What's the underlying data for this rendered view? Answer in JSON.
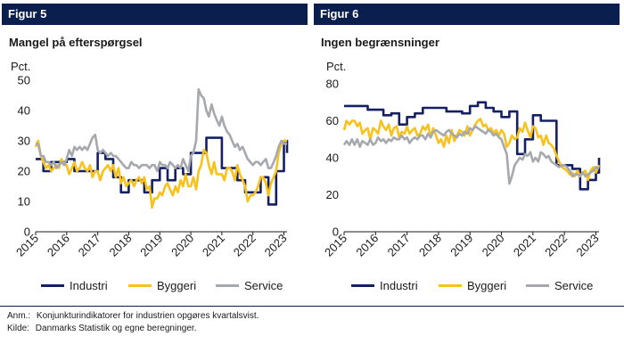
{
  "colors": {
    "industri": "#142063",
    "byggeri": "#f7c21e",
    "service": "#a5a8ad",
    "header_bg": "#0b1f4f"
  },
  "left": {
    "figure_label": "Figur 5",
    "title": "Mangel på efterspørgsel"
  },
  "right": {
    "figure_label": "Figur 6",
    "title": "Ingen begrænsninger"
  },
  "legend": {
    "industri": "Industri",
    "byggeri": "Byggeri",
    "service": "Service"
  },
  "notes": {
    "anm_label": "Anm.:",
    "anm_text": "Konjunkturindikatorer for industrien opgøres kvartalsvist.",
    "kilde_label": "Kilde:",
    "kilde_text": "Danmarks Statistik og egne beregninger."
  },
  "chart_data": [
    {
      "type": "line",
      "title": "Mangel på efterspørgsel",
      "ylabel": "Pct.",
      "ylim": [
        0,
        50
      ],
      "yticks": [
        0,
        10,
        20,
        30,
        40,
        50
      ],
      "xlim": [
        2015,
        2023.1
      ],
      "xticks": [
        "2015",
        "2016",
        "2017",
        "2018",
        "2019",
        "2020",
        "2021",
        "2022",
        "2023"
      ],
      "grid": false,
      "legend_position": "bottom",
      "series": [
        {
          "name": "Industri",
          "color": "#142063",
          "step": true,
          "x": [
            2015.0,
            2015.25,
            2015.5,
            2015.75,
            2016.0,
            2016.25,
            2016.5,
            2016.75,
            2017.0,
            2017.25,
            2017.5,
            2017.75,
            2018.0,
            2018.25,
            2018.5,
            2018.75,
            2019.0,
            2019.25,
            2019.5,
            2019.75,
            2020.0,
            2020.25,
            2020.5,
            2020.75,
            2021.0,
            2021.25,
            2021.5,
            2021.75,
            2022.0,
            2022.25,
            2022.5,
            2022.75,
            2023.0,
            2023.1
          ],
          "y": [
            24,
            20,
            23,
            23,
            24,
            20,
            20,
            20,
            26,
            24,
            18,
            13,
            17,
            17,
            13,
            17,
            21,
            17,
            21,
            19,
            26,
            26,
            31,
            31,
            21,
            21,
            17,
            13,
            13,
            18,
            9,
            20,
            30,
            26
          ]
        },
        {
          "name": "Byggeri",
          "color": "#f7c21e",
          "x": [
            2015.0,
            2015.08,
            2015.17,
            2015.25,
            2015.33,
            2015.42,
            2015.5,
            2015.58,
            2015.67,
            2015.75,
            2015.83,
            2015.92,
            2016.0,
            2016.08,
            2016.17,
            2016.25,
            2016.33,
            2016.42,
            2016.5,
            2016.58,
            2016.67,
            2016.75,
            2016.83,
            2016.92,
            2017.0,
            2017.08,
            2017.17,
            2017.25,
            2017.33,
            2017.42,
            2017.5,
            2017.58,
            2017.67,
            2017.75,
            2017.83,
            2017.92,
            2018.0,
            2018.08,
            2018.17,
            2018.25,
            2018.33,
            2018.42,
            2018.5,
            2018.58,
            2018.67,
            2018.75,
            2018.83,
            2018.92,
            2019.0,
            2019.08,
            2019.17,
            2019.25,
            2019.33,
            2019.42,
            2019.5,
            2019.58,
            2019.67,
            2019.75,
            2019.83,
            2019.92,
            2020.0,
            2020.08,
            2020.17,
            2020.25,
            2020.33,
            2020.42,
            2020.5,
            2020.58,
            2020.67,
            2020.75,
            2020.83,
            2020.92,
            2021.0,
            2021.08,
            2021.17,
            2021.25,
            2021.33,
            2021.42,
            2021.5,
            2021.58,
            2021.67,
            2021.75,
            2021.83,
            2021.92,
            2022.0,
            2022.08,
            2022.17,
            2022.25,
            2022.33,
            2022.42,
            2022.5,
            2022.58,
            2022.67,
            2022.75,
            2022.83,
            2022.92,
            2023.0,
            2023.1
          ],
          "y": [
            28,
            30,
            25,
            23,
            21,
            22,
            20,
            21,
            22,
            21,
            24,
            22,
            22,
            19,
            21,
            23,
            20,
            21,
            23,
            21,
            20,
            22,
            18,
            20,
            20,
            17,
            20,
            21,
            22,
            20,
            22,
            18,
            21,
            16,
            18,
            15,
            16,
            17,
            15,
            17,
            18,
            16,
            18,
            14,
            15,
            8,
            11,
            11,
            13,
            12,
            15,
            16,
            14,
            12,
            15,
            13,
            17,
            15,
            19,
            15,
            15,
            18,
            14,
            20,
            22,
            27,
            26,
            22,
            19,
            23,
            19,
            19,
            19,
            17,
            21,
            21,
            20,
            17,
            22,
            19,
            17,
            15,
            10,
            12,
            12,
            13,
            15,
            18,
            18,
            16,
            12,
            16,
            18,
            20,
            26,
            29,
            30,
            30
          ]
        },
        {
          "name": "Service",
          "color": "#a5a8ad",
          "x": [
            2015.0,
            2015.08,
            2015.17,
            2015.25,
            2015.33,
            2015.42,
            2015.5,
            2015.58,
            2015.67,
            2015.75,
            2015.83,
            2015.92,
            2016.0,
            2016.08,
            2016.17,
            2016.25,
            2016.33,
            2016.42,
            2016.5,
            2016.58,
            2016.67,
            2016.75,
            2016.83,
            2016.92,
            2017.0,
            2017.08,
            2017.17,
            2017.25,
            2017.33,
            2017.42,
            2017.5,
            2017.58,
            2017.67,
            2017.75,
            2017.83,
            2017.92,
            2018.0,
            2018.08,
            2018.17,
            2018.25,
            2018.33,
            2018.42,
            2018.5,
            2018.58,
            2018.67,
            2018.75,
            2018.83,
            2018.92,
            2019.0,
            2019.08,
            2019.17,
            2019.25,
            2019.33,
            2019.42,
            2019.5,
            2019.58,
            2019.67,
            2019.75,
            2019.83,
            2019.92,
            2020.0,
            2020.08,
            2020.17,
            2020.25,
            2020.33,
            2020.42,
            2020.5,
            2020.58,
            2020.67,
            2020.75,
            2020.83,
            2020.92,
            2021.0,
            2021.08,
            2021.17,
            2021.25,
            2021.33,
            2021.42,
            2021.5,
            2021.58,
            2021.67,
            2021.75,
            2021.83,
            2021.92,
            2022.0,
            2022.08,
            2022.17,
            2022.25,
            2022.33,
            2022.42,
            2022.5,
            2022.58,
            2022.67,
            2022.75,
            2022.83,
            2022.92,
            2023.0,
            2023.1
          ],
          "y": [
            29,
            29,
            25,
            25,
            23,
            23,
            22,
            23,
            21,
            22,
            23,
            22,
            24,
            27,
            25,
            28,
            27,
            28,
            27,
            28,
            27,
            29,
            31,
            32,
            27,
            26,
            27,
            26,
            25,
            26,
            25,
            25,
            24,
            23,
            22,
            21,
            21,
            23,
            22,
            22,
            21,
            22,
            22,
            22,
            21,
            22,
            22,
            20,
            23,
            22,
            22,
            21,
            23,
            22,
            21,
            22,
            21,
            24,
            22,
            20,
            25,
            26,
            30,
            47,
            45,
            44,
            40,
            38,
            42,
            39,
            37,
            35,
            38,
            35,
            33,
            32,
            30,
            28,
            29,
            27,
            28,
            26,
            24,
            23,
            22,
            23,
            23,
            22,
            23,
            24,
            21,
            21,
            23,
            25,
            28,
            30,
            29,
            29
          ]
        }
      ]
    },
    {
      "type": "line",
      "title": "Ingen begrænsninger",
      "ylabel": "Pct.",
      "ylim": [
        0,
        80
      ],
      "yticks": [
        0,
        20,
        40,
        60,
        80
      ],
      "xlim": [
        2015,
        2023.1
      ],
      "xticks": [
        "2015",
        "2016",
        "2017",
        "2018",
        "2019",
        "2020",
        "2021",
        "2022",
        "2023"
      ],
      "grid": false,
      "legend_position": "bottom",
      "series": [
        {
          "name": "Industri",
          "color": "#142063",
          "step": true,
          "x": [
            2015.0,
            2015.25,
            2015.5,
            2015.75,
            2016.0,
            2016.25,
            2016.5,
            2016.75,
            2017.0,
            2017.25,
            2017.5,
            2017.75,
            2018.0,
            2018.25,
            2018.5,
            2018.75,
            2019.0,
            2019.25,
            2019.5,
            2019.75,
            2020.0,
            2020.25,
            2020.5,
            2020.75,
            2021.0,
            2021.25,
            2021.5,
            2021.75,
            2022.0,
            2022.25,
            2022.5,
            2022.75,
            2023.0,
            2023.1
          ],
          "y": [
            68,
            68,
            68,
            66,
            66,
            63,
            64,
            58,
            62,
            64,
            67,
            67,
            67,
            65,
            65,
            64,
            68,
            70,
            67,
            65,
            62,
            65,
            42,
            50,
            63,
            60,
            60,
            36,
            36,
            34,
            23,
            28,
            32,
            40
          ]
        },
        {
          "name": "Byggeri",
          "color": "#f7c21e",
          "x": [
            2015.0,
            2015.08,
            2015.17,
            2015.25,
            2015.33,
            2015.42,
            2015.5,
            2015.58,
            2015.67,
            2015.75,
            2015.83,
            2015.92,
            2016.0,
            2016.08,
            2016.17,
            2016.25,
            2016.33,
            2016.42,
            2016.5,
            2016.58,
            2016.67,
            2016.75,
            2016.83,
            2016.92,
            2017.0,
            2017.08,
            2017.17,
            2017.25,
            2017.33,
            2017.42,
            2017.5,
            2017.58,
            2017.67,
            2017.75,
            2017.83,
            2017.92,
            2018.0,
            2018.08,
            2018.17,
            2018.25,
            2018.33,
            2018.42,
            2018.5,
            2018.58,
            2018.67,
            2018.75,
            2018.83,
            2018.92,
            2019.0,
            2019.08,
            2019.17,
            2019.25,
            2019.33,
            2019.42,
            2019.5,
            2019.58,
            2019.67,
            2019.75,
            2019.83,
            2019.92,
            2020.0,
            2020.08,
            2020.17,
            2020.25,
            2020.33,
            2020.42,
            2020.5,
            2020.58,
            2020.67,
            2020.75,
            2020.83,
            2020.92,
            2021.0,
            2021.08,
            2021.17,
            2021.25,
            2021.33,
            2021.42,
            2021.5,
            2021.58,
            2021.67,
            2021.75,
            2021.83,
            2021.92,
            2022.0,
            2022.08,
            2022.17,
            2022.25,
            2022.33,
            2022.42,
            2022.5,
            2022.58,
            2022.67,
            2022.75,
            2022.83,
            2022.92,
            2023.0,
            2023.1
          ],
          "y": [
            55,
            60,
            58,
            60,
            60,
            57,
            59,
            53,
            55,
            56,
            50,
            56,
            55,
            53,
            60,
            57,
            55,
            58,
            52,
            56,
            57,
            51,
            54,
            53,
            57,
            53,
            55,
            56,
            52,
            53,
            57,
            55,
            58,
            51,
            56,
            52,
            48,
            50,
            46,
            52,
            48,
            55,
            49,
            52,
            55,
            54,
            52,
            57,
            52,
            55,
            58,
            60,
            61,
            57,
            58,
            55,
            56,
            53,
            55,
            52,
            55,
            53,
            46,
            48,
            52,
            50,
            51,
            56,
            54,
            59,
            55,
            51,
            57,
            56,
            51,
            52,
            47,
            52,
            48,
            47,
            45,
            41,
            38,
            35,
            34,
            33,
            31,
            32,
            30,
            33,
            30,
            32,
            33,
            28,
            33,
            35,
            32,
            36
          ]
        },
        {
          "name": "Service",
          "color": "#a5a8ad",
          "x": [
            2015.0,
            2015.08,
            2015.17,
            2015.25,
            2015.33,
            2015.42,
            2015.5,
            2015.58,
            2015.67,
            2015.75,
            2015.83,
            2015.92,
            2016.0,
            2016.08,
            2016.17,
            2016.25,
            2016.33,
            2016.42,
            2016.5,
            2016.58,
            2016.67,
            2016.75,
            2016.83,
            2016.92,
            2017.0,
            2017.08,
            2017.17,
            2017.25,
            2017.33,
            2017.42,
            2017.5,
            2017.58,
            2017.67,
            2017.75,
            2017.83,
            2017.92,
            2018.0,
            2018.08,
            2018.17,
            2018.25,
            2018.33,
            2018.42,
            2018.5,
            2018.58,
            2018.67,
            2018.75,
            2018.83,
            2018.92,
            2019.0,
            2019.08,
            2019.17,
            2019.25,
            2019.33,
            2019.42,
            2019.5,
            2019.58,
            2019.67,
            2019.75,
            2019.83,
            2019.92,
            2020.0,
            2020.08,
            2020.17,
            2020.25,
            2020.33,
            2020.42,
            2020.5,
            2020.58,
            2020.67,
            2020.75,
            2020.83,
            2020.92,
            2021.0,
            2021.08,
            2021.17,
            2021.25,
            2021.33,
            2021.42,
            2021.5,
            2021.58,
            2021.67,
            2021.75,
            2021.83,
            2021.92,
            2022.0,
            2022.08,
            2022.17,
            2022.25,
            2022.33,
            2022.42,
            2022.5,
            2022.58,
            2022.67,
            2022.75,
            2022.83,
            2022.92,
            2023.0,
            2023.1
          ],
          "y": [
            47,
            49,
            47,
            50,
            47,
            50,
            46,
            49,
            48,
            47,
            50,
            47,
            48,
            51,
            49,
            50,
            48,
            50,
            49,
            51,
            50,
            50,
            52,
            50,
            51,
            48,
            50,
            51,
            50,
            52,
            52,
            50,
            53,
            51,
            54,
            55,
            54,
            53,
            52,
            54,
            55,
            53,
            52,
            51,
            53,
            52,
            54,
            53,
            56,
            55,
            57,
            56,
            55,
            54,
            53,
            55,
            54,
            52,
            53,
            51,
            50,
            46,
            42,
            26,
            30,
            36,
            38,
            40,
            39,
            42,
            41,
            43,
            38,
            40,
            38,
            43,
            42,
            40,
            41,
            38,
            37,
            36,
            35,
            36,
            36,
            35,
            33,
            30,
            31,
            31,
            30,
            32,
            30,
            31,
            32,
            33,
            35,
            34
          ]
        }
      ]
    }
  ]
}
